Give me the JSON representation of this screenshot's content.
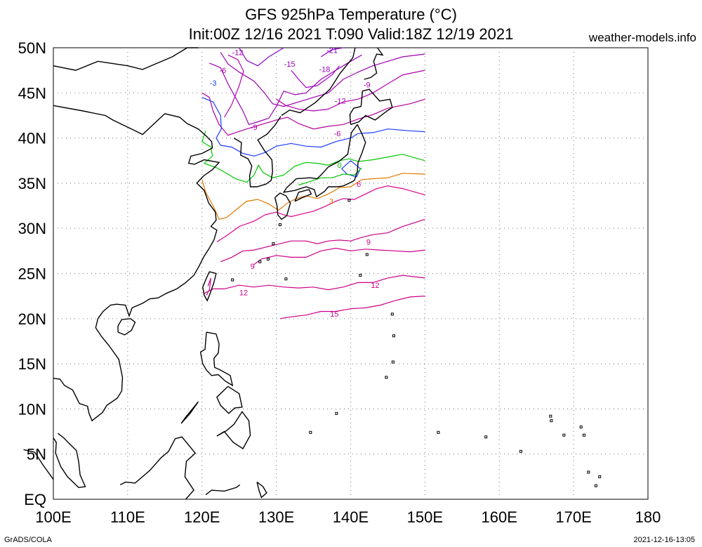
{
  "header": {
    "title": "GFS 925hPa Temperature (°C)",
    "subtitle": "Init:00Z 12/16 2021 T:090 Valid:18Z 12/19 2021",
    "site": "weather-models.info"
  },
  "footer": {
    "left": "GrADS/COLA",
    "right": "2021-12-16-13:05"
  },
  "map": {
    "lat_labels": [
      "EQ",
      "5N",
      "10N",
      "15N",
      "20N",
      "25N",
      "30N",
      "35N",
      "40N",
      "45N",
      "50N"
    ],
    "lon_labels": [
      "100E",
      "110E",
      "120E",
      "130E",
      "140E",
      "150E",
      "160E",
      "170E",
      "180"
    ],
    "lat_range": [
      0,
      50
    ],
    "lon_range": [
      100,
      180
    ],
    "grid": true,
    "colors": {
      "coast": "#000000",
      "grid": "#888888",
      "c_21": "#8a00c8",
      "c_18": "#a000c8",
      "c_15": "#9a00b4",
      "c_12": "#a000b4",
      "c_9": "#b400b4",
      "c_6": "#b400a0",
      "c_3": "#1e3cff",
      "c_0": "#00c800",
      "c_p3": "#e07800",
      "c_p6": "#dc008c",
      "c_p9": "#cc0088",
      "c_p12": "#cc0088",
      "c_p15": "#cc0088"
    },
    "contour_labels": [
      "-21",
      "-18",
      "-15",
      "-12",
      "-9",
      "-6",
      "-3",
      "0",
      "3",
      "6",
      "9",
      "12",
      "15"
    ]
  }
}
